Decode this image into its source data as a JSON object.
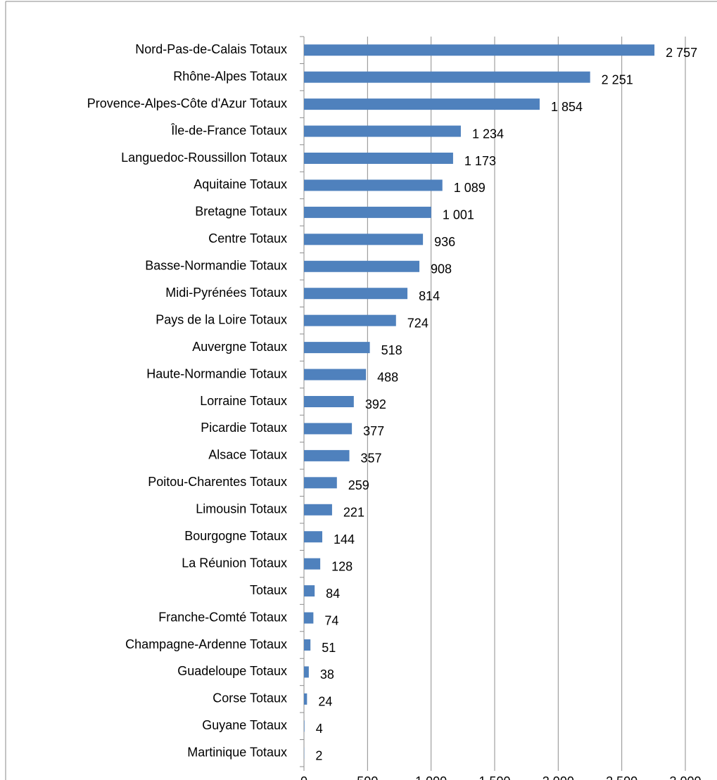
{
  "chart_data": {
    "type": "bar",
    "orientation": "horizontal",
    "color": "#4f81bd",
    "grid": true,
    "categories": [
      "Nord-Pas-de-Calais Totaux",
      "Rhône-Alpes Totaux",
      "Provence-Alpes-Côte d'Azur Totaux",
      "Île-de-France Totaux",
      "Languedoc-Roussillon Totaux",
      "Aquitaine Totaux",
      "Bretagne Totaux",
      "Centre Totaux",
      "Basse-Normandie Totaux",
      "Midi-Pyrénées Totaux",
      "Pays de la Loire Totaux",
      "Auvergne Totaux",
      "Haute-Normandie Totaux",
      "Lorraine Totaux",
      "Picardie Totaux",
      "Alsace Totaux",
      "Poitou-Charentes Totaux",
      "Limousin Totaux",
      "Bourgogne Totaux",
      "La Réunion Totaux",
      "Totaux",
      "Franche-Comté Totaux",
      "Champagne-Ardenne Totaux",
      "Guadeloupe Totaux",
      "Corse Totaux",
      "Guyane Totaux",
      "Martinique Totaux"
    ],
    "values": [
      2757,
      2251,
      1854,
      1234,
      1173,
      1089,
      1001,
      936,
      908,
      814,
      724,
      518,
      488,
      392,
      377,
      357,
      259,
      221,
      144,
      128,
      84,
      74,
      51,
      38,
      24,
      4,
      2
    ],
    "value_labels": [
      "2 757",
      "2 251",
      "1 854",
      "1 234",
      "1 173",
      "1 089",
      "1 001",
      "936",
      "908",
      "814",
      "724",
      "518",
      "488",
      "392",
      "377",
      "357",
      "259",
      "221",
      "144",
      "128",
      "84",
      "74",
      "51",
      "38",
      "24",
      "4",
      "2"
    ],
    "xlim": [
      0,
      3000
    ],
    "xticks": [
      0,
      500,
      {
        "value": 1000,
        "label": "1 000"
      },
      {
        "value": 1500,
        "label": "1 500"
      },
      {
        "value": 2000,
        "label": "2 000"
      },
      {
        "value": 2500,
        "label": "2 500"
      },
      {
        "value": 3000,
        "label": "3 000"
      }
    ]
  }
}
